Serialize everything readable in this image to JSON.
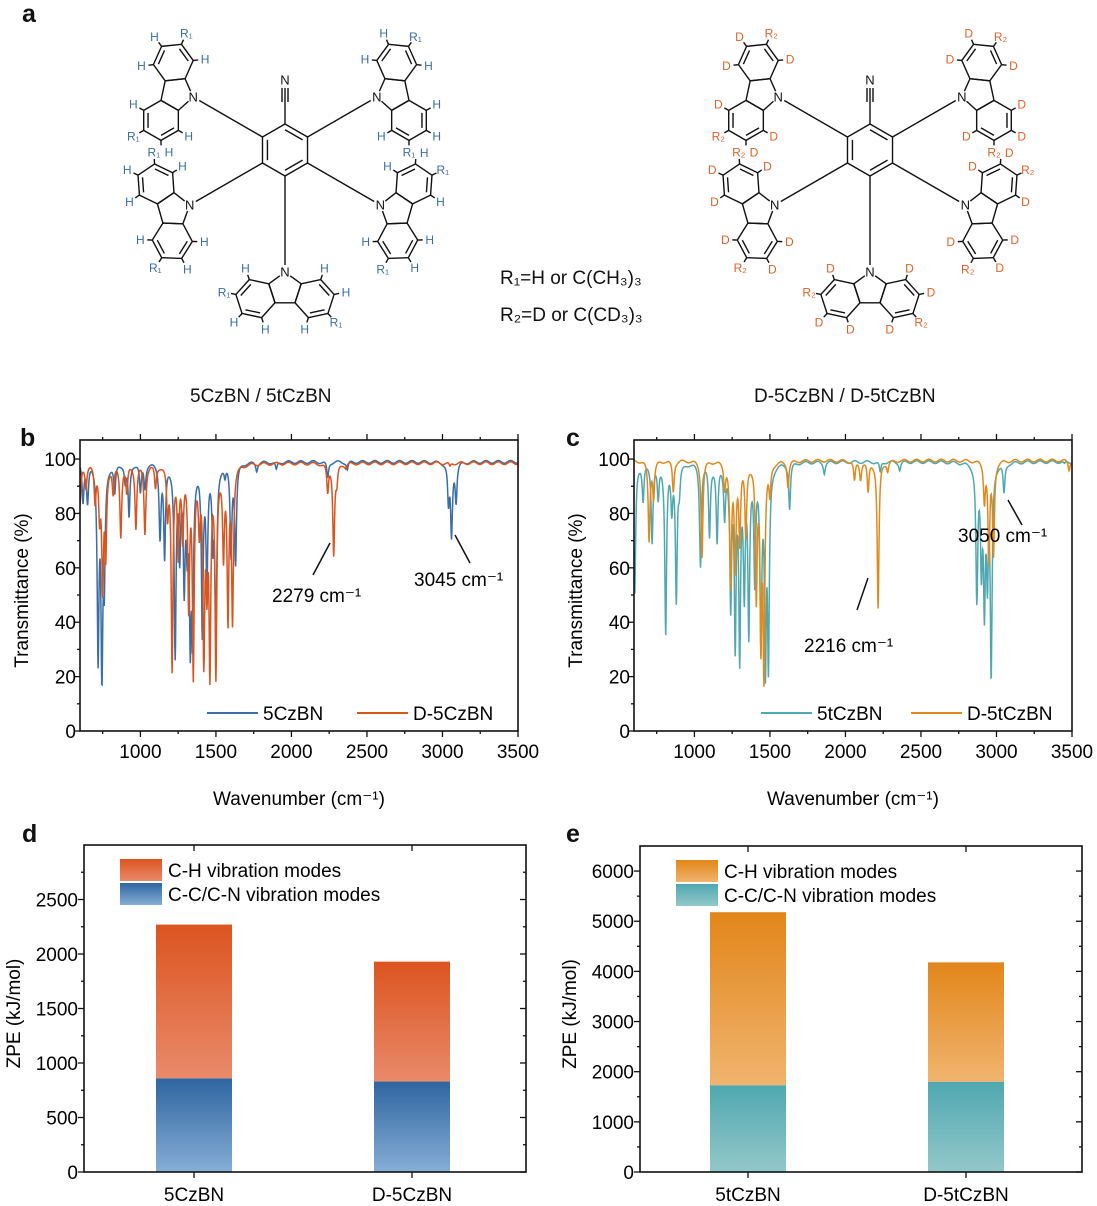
{
  "panel_labels": {
    "a": "a",
    "b": "b",
    "c": "c",
    "d": "d",
    "e": "e"
  },
  "structures": [
    {
      "caption": "5CzBN / 5tCzBN",
      "atom": "H",
      "substituent": "R₁",
      "nitrile_n": "N",
      "ring_n": "N",
      "color": "#3a6ea5"
    },
    {
      "caption": "D-5CzBN / D-5tCzBN",
      "atom": "D",
      "substituent": "R₂",
      "nitrile_n": "N",
      "ring_n": "N",
      "color": "#e0622a"
    }
  ],
  "definitions": {
    "r1": "R₁=H or C(CH₃)₃",
    "r2": "R₂=D or C(CD₃)₃"
  },
  "chart_data": [
    {
      "panel": "b",
      "type": "line",
      "xlabel": "Wavenumber (cm⁻¹)",
      "ylabel": "Transmittance (%)",
      "xlim": [
        600,
        3500
      ],
      "ylim": [
        0,
        107
      ],
      "xticks": [
        1000,
        1500,
        2000,
        2500,
        3000,
        3500
      ],
      "yticks": [
        0,
        20,
        40,
        60,
        80,
        100
      ],
      "grid": false,
      "legend": "bottom-right",
      "annotations": [
        {
          "text": "2279 cm⁻¹",
          "x": 2279
        },
        {
          "text": "3045 cm⁻¹",
          "x": 3045
        }
      ],
      "series": [
        {
          "name": "5CzBN",
          "color": "#3a6ea5",
          "baseline": 99,
          "peaks": [
            [
              620,
              85
            ],
            [
              650,
              85
            ],
            [
              720,
              25
            ],
            [
              745,
              18
            ],
            [
              760,
              55
            ],
            [
              830,
              88
            ],
            [
              900,
              92
            ],
            [
              925,
              79
            ],
            [
              1000,
              88
            ],
            [
              1030,
              90
            ],
            [
              1130,
              72
            ],
            [
              1160,
              64
            ],
            [
              1230,
              27
            ],
            [
              1260,
              65
            ],
            [
              1290,
              53
            ],
            [
              1310,
              70
            ],
            [
              1330,
              30
            ],
            [
              1345,
              33
            ],
            [
              1410,
              35
            ],
            [
              1440,
              55
            ],
            [
              1480,
              70
            ],
            [
              1500,
              32
            ],
            [
              1560,
              95
            ],
            [
              1600,
              65
            ],
            [
              1630,
              62
            ],
            [
              1770,
              96
            ],
            [
              1900,
              96
            ],
            [
              2240,
              93
            ],
            [
              2370,
              96
            ],
            [
              3040,
              84
            ],
            [
              3060,
              72
            ],
            [
              3090,
              85
            ]
          ]
        },
        {
          "name": "D-5CzBN",
          "color": "#d9541e",
          "baseline": 98.5,
          "peaks": [
            [
              600,
              83
            ],
            [
              640,
              90
            ],
            [
              700,
              85
            ],
            [
              730,
              80
            ],
            [
              750,
              52
            ],
            [
              770,
              65
            ],
            [
              820,
              88
            ],
            [
              870,
              72
            ],
            [
              910,
              88
            ],
            [
              970,
              75
            ],
            [
              1030,
              73
            ],
            [
              1100,
              90
            ],
            [
              1180,
              80
            ],
            [
              1210,
              22
            ],
            [
              1250,
              65
            ],
            [
              1280,
              72
            ],
            [
              1320,
              45
            ],
            [
              1350,
              19
            ],
            [
              1390,
              76
            ],
            [
              1420,
              24
            ],
            [
              1440,
              55
            ],
            [
              1460,
              19
            ],
            [
              1500,
              19
            ],
            [
              1550,
              65
            ],
            [
              1580,
              40
            ],
            [
              1610,
              40
            ],
            [
              2240,
              88
            ],
            [
              2280,
              65
            ],
            [
              2300,
              92
            ],
            [
              2360,
              97
            ],
            [
              3050,
              97
            ]
          ]
        }
      ]
    },
    {
      "panel": "c",
      "type": "line",
      "xlabel": "Wavenumber (cm⁻¹)",
      "ylabel": "Transmittance (%)",
      "xlim": [
        600,
        3500
      ],
      "ylim": [
        0,
        107
      ],
      "xticks": [
        1000,
        1500,
        2000,
        2500,
        3000,
        3500
      ],
      "yticks": [
        0,
        20,
        40,
        60,
        80,
        100
      ],
      "grid": false,
      "legend": "bottom-right",
      "annotations": [
        {
          "text": "2216 cm⁻¹",
          "x": 2216
        },
        {
          "text": "3050 cm⁻¹",
          "x": 3050
        }
      ],
      "series": [
        {
          "name": "5tCzBN",
          "color": "#4fa8b0",
          "baseline": 99,
          "peaks": [
            [
              605,
              50
            ],
            [
              660,
              85
            ],
            [
              720,
              70
            ],
            [
              760,
              86
            ],
            [
              810,
              36
            ],
            [
              850,
              82
            ],
            [
              880,
              48
            ],
            [
              900,
              90
            ],
            [
              1040,
              61
            ],
            [
              1100,
              72
            ],
            [
              1150,
              70
            ],
            [
              1200,
              80
            ],
            [
              1240,
              45
            ],
            [
              1270,
              30
            ],
            [
              1300,
              25
            ],
            [
              1330,
              50
            ],
            [
              1360,
              35
            ],
            [
              1400,
              55
            ],
            [
              1440,
              30
            ],
            [
              1470,
              20
            ],
            [
              1490,
              22
            ],
            [
              1630,
              82
            ],
            [
              1860,
              95
            ],
            [
              2230,
              95
            ],
            [
              2360,
              96
            ],
            [
              2870,
              48
            ],
            [
              2900,
              60
            ],
            [
              2920,
              44
            ],
            [
              2940,
              56
            ],
            [
              2965,
              19
            ],
            [
              3050,
              88
            ],
            [
              3450,
              98
            ]
          ]
        },
        {
          "name": "D-5tCzBN",
          "color": "#e08a1e",
          "baseline": 99.5,
          "peaks": [
            [
              700,
              70
            ],
            [
              730,
              86
            ],
            [
              860,
              88
            ],
            [
              1050,
              64
            ],
            [
              1200,
              90
            ],
            [
              1240,
              53
            ],
            [
              1270,
              60
            ],
            [
              1300,
              70
            ],
            [
              1340,
              72
            ],
            [
              1410,
              48
            ],
            [
              1440,
              30
            ],
            [
              1460,
              18
            ],
            [
              1500,
              88
            ],
            [
              1620,
              90
            ],
            [
              2060,
              92
            ],
            [
              2100,
              93
            ],
            [
              2150,
              88
            ],
            [
              2216,
              45
            ],
            [
              2280,
              96
            ],
            [
              2920,
              85
            ],
            [
              2950,
              62
            ],
            [
              2980,
              65
            ],
            [
              3480,
              96
            ]
          ]
        }
      ]
    },
    {
      "panel": "d",
      "type": "bar",
      "stacked": true,
      "ylabel": "ZPE (kJ/mol)",
      "ylim": [
        0,
        3000
      ],
      "yticks": [
        0,
        500,
        1000,
        1500,
        2000,
        2500
      ],
      "categories": [
        "5CzBN",
        "D-5CzBN"
      ],
      "legend": "top-left",
      "series": [
        {
          "name": "C-C/C-N vibration modes",
          "values": [
            860,
            830
          ],
          "color_top": "#2f65a0",
          "color_bottom": "#86aed6"
        },
        {
          "name": "C-H vibration modes",
          "values": [
            1410,
            1100
          ],
          "color_top": "#dc5420",
          "color_bottom": "#e98a6a"
        }
      ]
    },
    {
      "panel": "e",
      "type": "bar",
      "stacked": true,
      "ylabel": "ZPE (kJ/mol)",
      "ylim": [
        0,
        6500
      ],
      "yticks": [
        0,
        1000,
        2000,
        3000,
        4000,
        5000,
        6000
      ],
      "categories": [
        "5tCzBN",
        "D-5tCzBN"
      ],
      "legend": "top-left",
      "series": [
        {
          "name": "C-C/C-N vibration modes",
          "values": [
            1730,
            1800
          ],
          "color_top": "#4fa8b0",
          "color_bottom": "#93c8ca"
        },
        {
          "name": "C-H vibration modes",
          "values": [
            3450,
            2380
          ],
          "color_top": "#e2861a",
          "color_bottom": "#f0b46e"
        }
      ]
    }
  ]
}
